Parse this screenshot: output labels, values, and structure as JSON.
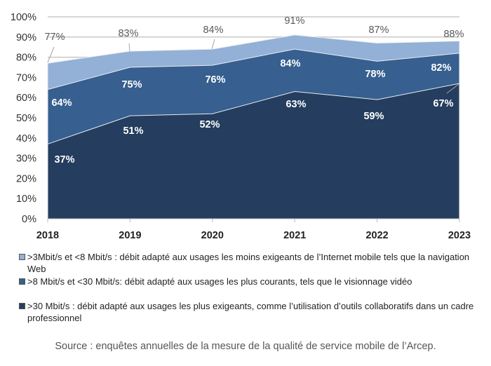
{
  "chart_data": {
    "type": "area",
    "x": [
      "2018",
      "2019",
      "2020",
      "2021",
      "2022",
      "2023"
    ],
    "ylim": [
      0,
      100
    ],
    "yticks": [
      "0%",
      "10%",
      "20%",
      "30%",
      "40%",
      "50%",
      "60%",
      "70%",
      "80%",
      "90%",
      "100%"
    ],
    "grid": true,
    "legend_position": "bottom",
    "series": [
      {
        "name": ">30 Mbit/s : débit adapté aux usages les plus exigeants, comme l’utilisation d’outils collaboratifs dans un cadre professionnel",
        "values": [
          37,
          51,
          52,
          63,
          59,
          67
        ],
        "labels": [
          "37%",
          "51%",
          "52%",
          "63%",
          "59%",
          "67%"
        ],
        "color": "#253d5e"
      },
      {
        "name": ">8 Mbit/s et <30 Mbit/s: débit adapté aux usages les plus courants, tels que le visionnage vidéo",
        "values": [
          64,
          75,
          76,
          84,
          78,
          82
        ],
        "labels": [
          "64%",
          "75%",
          "76%",
          "84%",
          "78%",
          "82%"
        ],
        "color": "#375f8f"
      },
      {
        "name": ">3Mbit/s et <8 Mbit/s : débit adapté aux usages les moins exigeants de l’Internet mobile tels que la navigation Web",
        "values": [
          77,
          83,
          84,
          91,
          87,
          88
        ],
        "labels": [
          "77%",
          "83%",
          "84%",
          "91%",
          "87%",
          "88%"
        ],
        "color": "#93b0d6"
      }
    ]
  },
  "legend": [
    {
      "label": ">3Mbit/s et <8 Mbit/s : débit adapté aux usages les moins exigeants de l’Internet mobile tels que la navigation Web",
      "color": "#93b0d6"
    },
    {
      "label": ">8 Mbit/s et <30 Mbit/s: débit adapté aux usages les plus courants, tels que le visionnage vidéo",
      "color": "#375f8f"
    },
    {
      "label": ">30 Mbit/s : débit adapté aux usages les plus exigeants, comme l’utilisation d’outils collaboratifs dans un cadre professionnel",
      "color": "#253d5e"
    }
  ],
  "source": "Source : enquêtes annuelles de la mesure de la qualité de service mobile de l’Arcep."
}
